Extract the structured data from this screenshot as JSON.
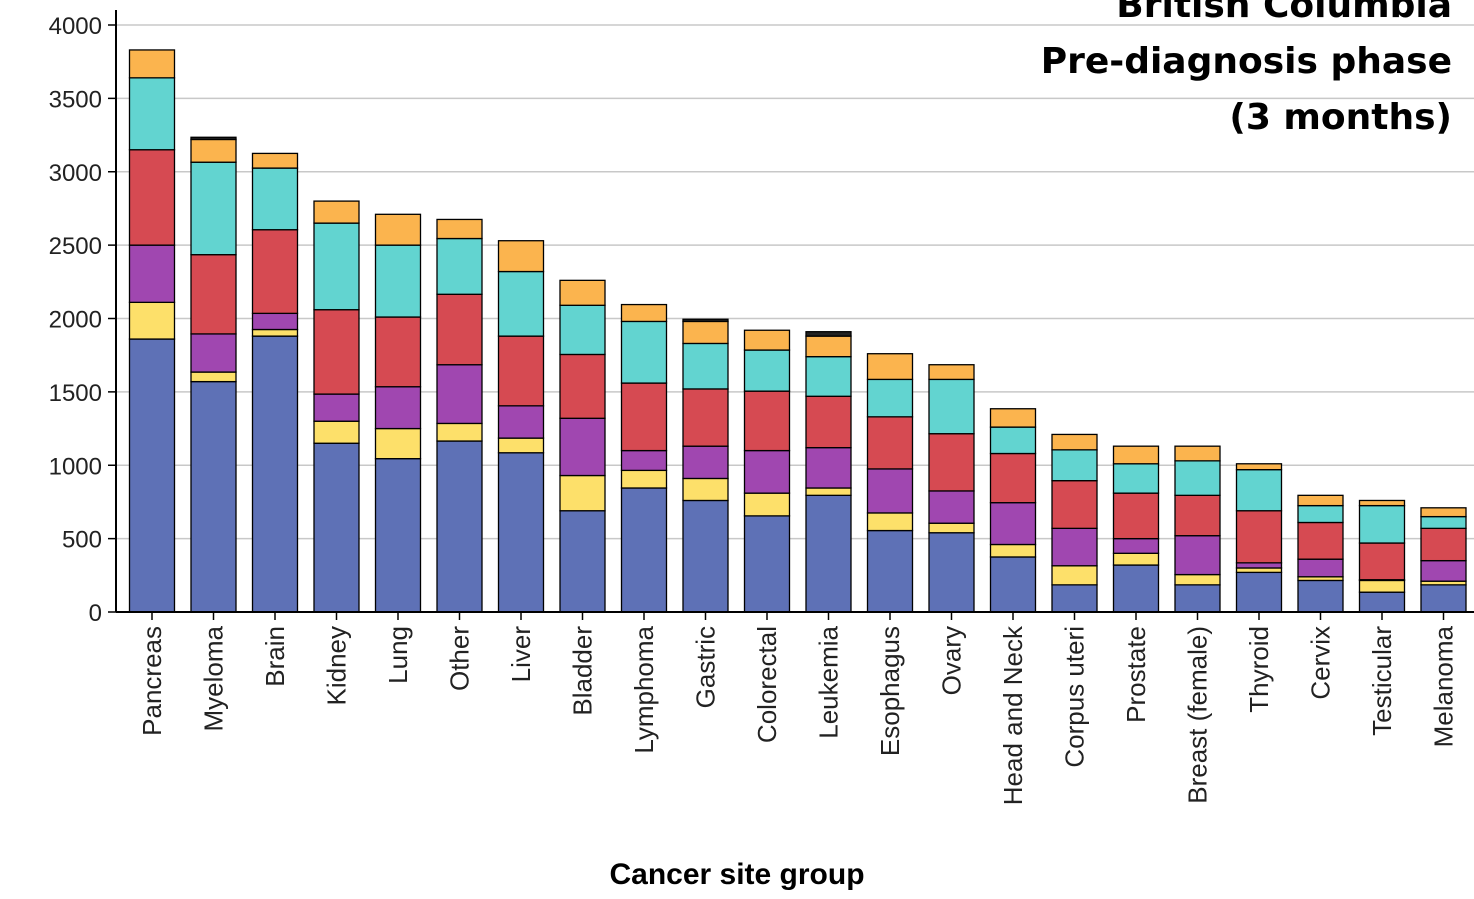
{
  "chart_data": {
    "type": "bar",
    "stacked": true,
    "title_lines": [
      "British Columbia",
      "Pre-diagnosis phase",
      "(3 months)"
    ],
    "xlabel": "Cancer site group",
    "ylabel": "",
    "ylim": [
      0,
      4000
    ],
    "yticks": [
      0,
      500,
      1000,
      1500,
      2000,
      2500,
      3000,
      3500,
      4000
    ],
    "grid": true,
    "legend": "none",
    "categories": [
      "Pancreas",
      "Myeloma",
      "Brain",
      "Kidney",
      "Lung",
      "Other",
      "Liver",
      "Bladder",
      "Lymphoma",
      "Gastric",
      "Colorectal",
      "Leukemia",
      "Esophagus",
      "Ovary",
      "Head and Neck",
      "Corpus uteri",
      "Prostate",
      "Breast (female)",
      "Thyroid",
      "Cervix",
      "Testicular",
      "Melanoma"
    ],
    "series": [
      {
        "color": "#5e71b6",
        "values": [
          1860,
          1570,
          1880,
          1150,
          1045,
          1165,
          1085,
          690,
          845,
          760,
          655,
          795,
          555,
          540,
          375,
          185,
          320,
          185,
          270,
          215,
          135,
          185
        ]
      },
      {
        "color": "#fde06a",
        "values": [
          250,
          65,
          45,
          150,
          205,
          120,
          100,
          240,
          120,
          150,
          155,
          50,
          120,
          65,
          85,
          130,
          80,
          70,
          30,
          25,
          80,
          25
        ]
      },
      {
        "color": "#a047b0",
        "values": [
          390,
          260,
          110,
          185,
          285,
          400,
          220,
          390,
          135,
          220,
          290,
          275,
          300,
          220,
          285,
          255,
          100,
          265,
          35,
          120,
          5,
          140
        ]
      },
      {
        "color": "#d64a52",
        "values": [
          650,
          540,
          570,
          575,
          475,
          480,
          475,
          435,
          460,
          390,
          405,
          350,
          355,
          390,
          335,
          325,
          310,
          275,
          355,
          250,
          250,
          220
        ]
      },
      {
        "color": "#62d4d0",
        "values": [
          490,
          630,
          420,
          590,
          490,
          380,
          440,
          335,
          420,
          310,
          280,
          270,
          255,
          370,
          180,
          210,
          200,
          235,
          280,
          115,
          255,
          80
        ]
      },
      {
        "color": "#fbb44e",
        "values": [
          190,
          155,
          100,
          150,
          210,
          130,
          210,
          170,
          115,
          150,
          135,
          140,
          175,
          100,
          125,
          105,
          120,
          100,
          40,
          70,
          35,
          60
        ]
      },
      {
        "color": "#222222",
        "values": [
          0,
          15,
          0,
          0,
          0,
          0,
          0,
          0,
          0,
          15,
          0,
          30,
          0,
          0,
          0,
          0,
          0,
          0,
          0,
          0,
          0,
          0
        ]
      }
    ]
  }
}
